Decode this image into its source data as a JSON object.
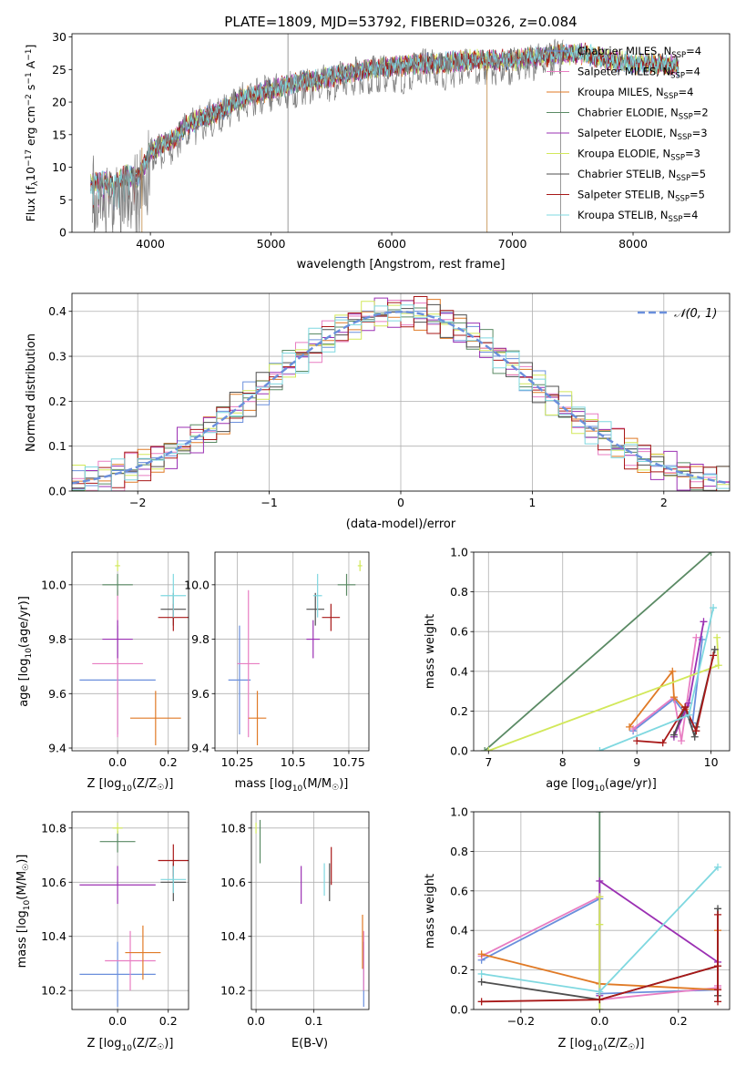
{
  "page": {
    "title": "PLATE=1809, MJD=53792, FIBERID=0326, z=0.084"
  },
  "colors": {
    "legend_names": [
      "Chabrier MILES",
      "Salpeter MILES",
      "Kroupa MILES",
      "Chabrier ELODIE",
      "Salpeter ELODIE",
      "Kroupa ELODIE",
      "Chabrier STELIB",
      "Salpeter STELIB",
      "Kroupa STELIB"
    ],
    "series": [
      "#6a8fdc",
      "#e07a26",
      "#e87dc2",
      "#5a8a64",
      "#9b30b3",
      "#d2e85a",
      "#4f4f4f",
      "#a81818",
      "#7fd8e0"
    ],
    "gray": "#808080"
  },
  "legend": {
    "spectrum": [
      {
        "name": "Chabrier MILES",
        "n": "4",
        "color": "#6a8fdc"
      },
      {
        "name": "Salpeter MILES",
        "n": "4",
        "color": "#e87dc2"
      },
      {
        "name": "Kroupa MILES",
        "n": "4",
        "color": "#e07a26"
      },
      {
        "name": "Chabrier ELODIE",
        "n": "2",
        "color": "#5a8a64"
      },
      {
        "name": "Salpeter ELODIE",
        "n": "3",
        "color": "#9b30b3"
      },
      {
        "name": "Kroupa ELODIE",
        "n": "3",
        "color": "#d2e85a"
      },
      {
        "name": "Chabrier STELIB",
        "n": "5",
        "color": "#4f4f4f"
      },
      {
        "name": "Salpeter STELIB",
        "n": "5",
        "color": "#a81818"
      },
      {
        "name": "Kroupa STELIB",
        "n": "4",
        "color": "#7fd8e0"
      }
    ],
    "normal_label": "𝒩(0, 1)"
  },
  "chart_data": [
    {
      "id": "spectrum",
      "type": "line",
      "title": "PLATE=1809, MJD=53792, FIBERID=0326, z=0.084",
      "xlabel": "wavelength [Angstrom, rest frame]",
      "ylabel": "Flux [f_λ 10^-17 erg cm^-2 s^-1 A^-1]",
      "xlim": [
        3350,
        8800
      ],
      "ylim": [
        0,
        30.5
      ],
      "xticks": [
        4000,
        5000,
        6000,
        7000,
        8000
      ],
      "yticks": [
        0,
        5,
        10,
        15,
        20,
        25,
        30
      ],
      "series": [
        {
          "name": "data",
          "x": [
            3500,
            3600,
            3700,
            3800,
            3900,
            4000,
            4100,
            4200,
            4300,
            4400,
            4500,
            4600,
            4700,
            4800,
            4900,
            5000,
            5100,
            5200,
            5300,
            5400,
            5500,
            5600,
            5700,
            5800,
            5900,
            6000,
            6100,
            6200,
            6300,
            6400,
            6500,
            6600,
            6700,
            6800,
            6900,
            7000,
            7100,
            7200,
            7300,
            7400
          ],
          "y": [
            8.5,
            9,
            8,
            10,
            9,
            13,
            14,
            15,
            17.5,
            18,
            19,
            20,
            21,
            22,
            22.5,
            23,
            23,
            23.5,
            24,
            24.5,
            24.5,
            25,
            25.5,
            25.5,
            26,
            26,
            25,
            26.5,
            27,
            26.5,
            26,
            27,
            27,
            27,
            27,
            27,
            27.5,
            27.5,
            28,
            28.5
          ]
        },
        {
          "name": "models",
          "x": [
            3500,
            3600,
            3700,
            3800,
            3900,
            4000,
            4100,
            4200,
            4300,
            4400,
            4500,
            4600,
            4700,
            4800,
            4900,
            5000,
            5200,
            5400,
            5600,
            5800,
            6000,
            6200,
            6400,
            6600,
            6800,
            7000,
            7200,
            7400,
            7600,
            7800,
            8000,
            8200,
            8400
          ],
          "y": [
            8,
            8.5,
            8,
            9.5,
            9,
            13,
            14,
            15,
            17,
            18,
            18.5,
            19.5,
            20.5,
            21.5,
            22,
            22.5,
            23.5,
            24,
            25,
            25.5,
            26,
            26.5,
            26.5,
            27,
            27,
            27,
            27.5,
            28,
            28,
            27,
            26.5,
            26.5,
            26
          ]
        }
      ]
    },
    {
      "id": "residual_hist",
      "type": "histogram",
      "xlabel": "(data-model)/error",
      "ylabel": "Normed distribution",
      "xlim": [
        -2.5,
        2.5
      ],
      "ylim": [
        0,
        0.44
      ],
      "xticks": [
        -2,
        -1,
        0,
        1,
        2
      ],
      "yticks": [
        0.0,
        0.1,
        0.2,
        0.3,
        0.4
      ],
      "bin_width": 0.1,
      "normal": {
        "mean": 0,
        "sigma": 1
      }
    },
    {
      "id": "age_vs_Z",
      "type": "errorbar",
      "xlabel": "Z [log10(Z/Z☉)]",
      "ylabel": "age  [log10(age/yr)]",
      "xlim": [
        -0.18,
        0.28
      ],
      "ylim": [
        9.39,
        10.12
      ],
      "xticks": [
        0.0,
        0.2
      ],
      "yticks": [
        9.4,
        9.6,
        9.8,
        10.0
      ],
      "points": [
        {
          "series": "Chabrier MILES",
          "x": 0.0,
          "xerr": 0.15,
          "y": 9.65,
          "yerr": 0.2
        },
        {
          "series": "Kroupa MILES",
          "x": 0.0,
          "xerr": 0.1,
          "y": 9.71,
          "yerr": 0.27
        },
        {
          "series": "Salpeter MILES",
          "x": 0.15,
          "xerr": 0.1,
          "y": 9.51,
          "yerr": 0.1
        },
        {
          "series": "Chabrier ELODIE",
          "x": 0.0,
          "xerr": 0.06,
          "y": 10.0,
          "yerr": 0.04
        },
        {
          "series": "Salpeter ELODIE",
          "x": 0.0,
          "xerr": 0.06,
          "y": 9.8,
          "yerr": 0.07
        },
        {
          "series": "Kroupa ELODIE",
          "x": 0.0,
          "xerr": 0.01,
          "y": 10.07,
          "yerr": 0.02
        },
        {
          "series": "Chabrier STELIB",
          "x": 0.22,
          "xerr": 0.05,
          "y": 9.91,
          "yerr": 0.06
        },
        {
          "series": "Salpeter STELIB",
          "x": 0.22,
          "xerr": 0.06,
          "y": 9.88,
          "yerr": 0.05
        },
        {
          "series": "Kroupa STELIB",
          "x": 0.22,
          "xerr": 0.05,
          "y": 9.96,
          "yerr": 0.08
        }
      ]
    },
    {
      "id": "age_vs_mass",
      "type": "errorbar",
      "xlabel": "mass [log10(M/M☉)]",
      "ylabel": "",
      "xlim": [
        10.15,
        10.84
      ],
      "ylim": [
        9.39,
        10.12
      ],
      "xticks": [
        10.25,
        10.5,
        10.75
      ],
      "yticks": [
        9.4,
        9.6,
        9.8,
        10.0
      ],
      "points": [
        {
          "series": "Chabrier MILES",
          "x": 10.26,
          "xerr": 0.05,
          "y": 9.65,
          "yerr": 0.2
        },
        {
          "series": "Kroupa MILES",
          "x": 10.3,
          "xerr": 0.05,
          "y": 9.71,
          "yerr": 0.27
        },
        {
          "series": "Salpeter MILES",
          "x": 10.34,
          "xerr": 0.04,
          "y": 9.51,
          "yerr": 0.1
        },
        {
          "series": "Chabrier ELODIE",
          "x": 10.74,
          "xerr": 0.04,
          "y": 10.0,
          "yerr": 0.04
        },
        {
          "series": "Salpeter ELODIE",
          "x": 10.59,
          "xerr": 0.03,
          "y": 9.8,
          "yerr": 0.07
        },
        {
          "series": "Kroupa ELODIE",
          "x": 10.8,
          "xerr": 0.01,
          "y": 10.07,
          "yerr": 0.02
        },
        {
          "series": "Chabrier STELIB",
          "x": 10.6,
          "xerr": 0.04,
          "y": 9.91,
          "yerr": 0.06
        },
        {
          "series": "Salpeter STELIB",
          "x": 10.67,
          "xerr": 0.04,
          "y": 9.88,
          "yerr": 0.05
        },
        {
          "series": "Kroupa STELIB",
          "x": 10.61,
          "xerr": 0.02,
          "y": 9.96,
          "yerr": 0.08
        }
      ]
    },
    {
      "id": "mass_weight_vs_age",
      "type": "line",
      "xlabel": "age  [log10(age/yr)]",
      "ylabel": "mass weight",
      "xlim": [
        6.8,
        10.25
      ],
      "ylim": [
        0,
        1
      ],
      "xticks": [
        7,
        8,
        9,
        10
      ],
      "yticks": [
        0.0,
        0.2,
        0.4,
        0.6,
        0.8,
        1.0
      ],
      "series": [
        {
          "name": "Chabrier MILES",
          "x": [
            8.95,
            9.5,
            9.75,
            9.88
          ],
          "y": [
            0.1,
            0.26,
            0.14,
            0.56
          ]
        },
        {
          "name": "Kroupa MILES",
          "x": [
            8.95,
            9.5,
            9.6,
            9.8
          ],
          "y": [
            0.11,
            0.27,
            0.05,
            0.57
          ]
        },
        {
          "name": "Salpeter MILES",
          "x": [
            8.9,
            9.48,
            9.5,
            9.65
          ],
          "y": [
            0.12,
            0.4,
            0.27,
            0.21
          ]
        },
        {
          "name": "Chabrier ELODIE",
          "x": [
            6.95,
            10.0
          ],
          "y": [
            0.0,
            1.0
          ]
        },
        {
          "name": "Salpeter ELODIE",
          "x": [
            9.5,
            9.7,
            9.9
          ],
          "y": [
            0.07,
            0.24,
            0.65
          ]
        },
        {
          "name": "Kroupa ELODIE",
          "x": [
            7.0,
            10.1,
            10.08
          ],
          "y": [
            0.0,
            0.43,
            0.57
          ]
        },
        {
          "name": "Chabrier STELIB",
          "x": [
            9.5,
            9.65,
            9.78,
            9.8,
            10.05
          ],
          "y": [
            0.08,
            0.22,
            0.07,
            0.12,
            0.51
          ]
        },
        {
          "name": "Salpeter STELIB",
          "x": [
            9.0,
            9.35,
            9.65,
            9.8,
            10.03
          ],
          "y": [
            0.05,
            0.04,
            0.22,
            0.1,
            0.48
          ]
        },
        {
          "name": "Kroupa STELIB",
          "x": [
            8.5,
            9.7,
            10.03
          ],
          "y": [
            0.0,
            0.18,
            0.72
          ]
        }
      ]
    },
    {
      "id": "mass_vs_Z",
      "type": "errorbar",
      "xlabel": "Z [log10(Z/Z☉)]",
      "ylabel": "mass [log10(M/M☉)]",
      "xlim": [
        -0.18,
        0.28
      ],
      "ylim": [
        10.13,
        10.86
      ],
      "xticks": [
        0.0,
        0.2
      ],
      "yticks": [
        10.2,
        10.4,
        10.6,
        10.8
      ],
      "points": [
        {
          "series": "Chabrier MILES",
          "x": 0.0,
          "xerr": 0.15,
          "y": 10.26,
          "yerr": 0.12
        },
        {
          "series": "Kroupa MILES",
          "x": 0.05,
          "xerr": 0.1,
          "y": 10.31,
          "yerr": 0.11
        },
        {
          "series": "Salpeter MILES",
          "x": 0.1,
          "xerr": 0.07,
          "y": 10.34,
          "yerr": 0.1
        },
        {
          "series": "Chabrier ELODIE",
          "x": 0.0,
          "xerr": 0.07,
          "y": 10.75,
          "yerr": 0.04
        },
        {
          "series": "Salpeter ELODIE",
          "x": 0.0,
          "xerr": 0.15,
          "y": 10.59,
          "yerr": 0.07
        },
        {
          "series": "Kroupa ELODIE",
          "x": 0.0,
          "xerr": 0.02,
          "y": 10.8,
          "yerr": 0.02
        },
        {
          "series": "Chabrier STELIB",
          "x": 0.22,
          "xerr": 0.05,
          "y": 10.6,
          "yerr": 0.07
        },
        {
          "series": "Salpeter STELIB",
          "x": 0.22,
          "xerr": 0.06,
          "y": 10.68,
          "yerr": 0.06
        },
        {
          "series": "Kroupa STELIB",
          "x": 0.22,
          "xerr": 0.05,
          "y": 10.61,
          "yerr": 0.05
        }
      ]
    },
    {
      "id": "mass_vs_ebv",
      "type": "errorbar",
      "xlabel": "E(B-V)",
      "ylabel": "",
      "xlim": [
        -0.008,
        0.195
      ],
      "ylim": [
        10.13,
        10.86
      ],
      "xticks": [
        0.0,
        0.1
      ],
      "yticks": [
        10.2,
        10.4,
        10.6,
        10.8
      ],
      "points": [
        {
          "series": "Chabrier MILES",
          "x": 0.186,
          "xerr": 0,
          "y": 10.26,
          "yerr": 0.12
        },
        {
          "series": "Kroupa MILES",
          "x": 0.186,
          "xerr": 0,
          "y": 10.31,
          "yerr": 0.11
        },
        {
          "series": "Salpeter MILES",
          "x": 0.184,
          "xerr": 0,
          "y": 10.38,
          "yerr": 0.1
        },
        {
          "series": "Chabrier ELODIE",
          "x": 0.007,
          "xerr": 0,
          "y": 10.75,
          "yerr": 0.08
        },
        {
          "series": "Salpeter ELODIE",
          "x": 0.078,
          "xerr": 0,
          "y": 10.59,
          "yerr": 0.07
        },
        {
          "series": "Kroupa ELODIE",
          "x": 0.0,
          "xerr": 0,
          "y": 10.8,
          "yerr": 0.02
        },
        {
          "series": "Chabrier STELIB",
          "x": 0.127,
          "xerr": 0,
          "y": 10.6,
          "yerr": 0.07
        },
        {
          "series": "Salpeter STELIB",
          "x": 0.13,
          "xerr": 0,
          "y": 10.66,
          "yerr": 0.07
        },
        {
          "series": "Kroupa STELIB",
          "x": 0.118,
          "xerr": 0,
          "y": 10.61,
          "yerr": 0.06
        }
      ]
    },
    {
      "id": "mass_weight_vs_Z",
      "type": "line",
      "xlabel": "Z [log10(Z/Z☉)]",
      "ylabel": "mass weight",
      "xlim": [
        -0.32,
        0.33
      ],
      "ylim": [
        0,
        1
      ],
      "xticks": [
        -0.2,
        0.0,
        0.2
      ],
      "yticks": [
        0.0,
        0.2,
        0.4,
        0.6,
        0.8,
        1.0
      ],
      "series": [
        {
          "name": "Chabrier MILES",
          "x": [
            -0.3,
            0.0,
            0.0,
            0.3
          ],
          "y": [
            0.25,
            0.56,
            0.08,
            0.1
          ]
        },
        {
          "name": "Kroupa MILES",
          "x": [
            -0.3,
            0.0,
            0.0,
            0.3,
            0.3
          ],
          "y": [
            0.27,
            0.57,
            0.05,
            0.11,
            0.12
          ]
        },
        {
          "name": "Salpeter MILES",
          "x": [
            -0.3,
            0.0,
            0.3,
            0.3
          ],
          "y": [
            0.28,
            0.13,
            0.1,
            0.4
          ]
        },
        {
          "name": "Chabrier ELODIE",
          "x": [
            0.0,
            0.0
          ],
          "y": [
            0.0,
            1.0
          ]
        },
        {
          "name": "Salpeter ELODIE",
          "x": [
            0.0,
            0.0,
            0.3
          ],
          "y": [
            0.07,
            0.65,
            0.24
          ]
        },
        {
          "name": "Kroupa ELODIE",
          "x": [
            0.0,
            0.0,
            0.0
          ],
          "y": [
            0.0,
            0.43,
            0.57
          ]
        },
        {
          "name": "Chabrier STELIB",
          "x": [
            -0.3,
            0.0,
            0.3,
            0.3,
            0.3
          ],
          "y": [
            0.14,
            0.05,
            0.22,
            0.51,
            0.07
          ]
        },
        {
          "name": "Salpeter STELIB",
          "x": [
            -0.3,
            0.0,
            0.3,
            0.3,
            0.3,
            0.3
          ],
          "y": [
            0.04,
            0.05,
            0.22,
            0.48,
            0.1,
            0.04
          ]
        },
        {
          "name": "Kroupa STELIB",
          "x": [
            -0.3,
            0.0,
            0.3
          ],
          "y": [
            0.18,
            0.09,
            0.72
          ]
        }
      ]
    }
  ]
}
